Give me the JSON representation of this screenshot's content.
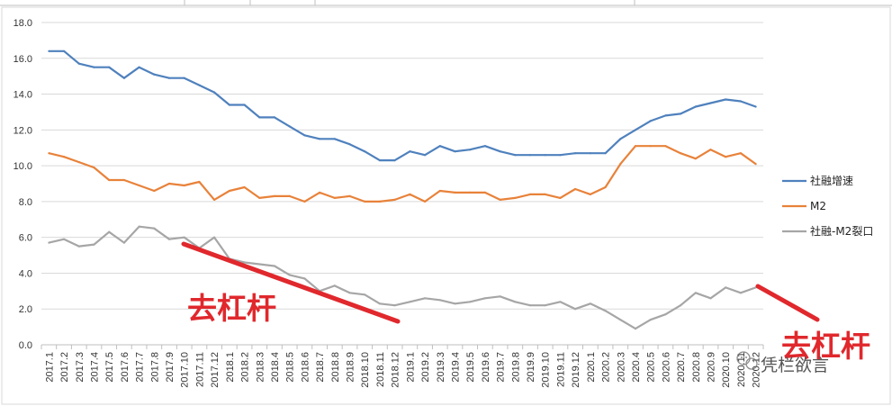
{
  "chart_data": {
    "type": "line",
    "title": "",
    "xlabel": "",
    "ylabel": "",
    "ylim": [
      0,
      18
    ],
    "yticks": [
      "0.0",
      "2.0",
      "4.0",
      "6.0",
      "8.0",
      "10.0",
      "12.0",
      "14.0",
      "16.0",
      "18.0"
    ],
    "grid": true,
    "legend_position": "right",
    "categories": [
      "2017.1",
      "2017.2",
      "2017.3",
      "2017.4",
      "2017.5",
      "2017.6",
      "2017.7",
      "2017.8",
      "2017.9",
      "2017.10",
      "2017.11",
      "2017.12",
      "2018.1",
      "2018.2",
      "2018.3",
      "2018.4",
      "2018.5",
      "2018.6",
      "2018.7",
      "2018.8",
      "2018.9",
      "2018.10",
      "2018.11",
      "2018.12",
      "2019.1",
      "2019.2",
      "2019.3",
      "2019.4",
      "2019.5",
      "2019.6",
      "2019.7",
      "2019.8",
      "2019.9",
      "2019.10",
      "2019.11",
      "2019.12",
      "2020.1",
      "2020.2",
      "2020.3",
      "2020.4",
      "2020.5",
      "2020.6",
      "2020.7",
      "2020.8",
      "2020.9",
      "2020.10",
      "2020.11",
      "2020.12"
    ],
    "series": [
      {
        "name": "社融增速",
        "color": "#4f81bd",
        "values": [
          16.4,
          16.4,
          15.7,
          15.5,
          15.5,
          14.9,
          15.5,
          15.1,
          14.9,
          14.9,
          14.5,
          14.1,
          13.4,
          13.4,
          12.7,
          12.7,
          12.2,
          11.7,
          11.5,
          11.5,
          11.2,
          10.8,
          10.3,
          10.3,
          10.8,
          10.6,
          11.1,
          10.8,
          10.9,
          11.1,
          10.8,
          10.6,
          10.6,
          10.6,
          10.6,
          10.7,
          10.7,
          10.7,
          11.5,
          12.0,
          12.5,
          12.8,
          12.9,
          13.3,
          13.5,
          13.7,
          13.6,
          13.3
        ]
      },
      {
        "name": "M2",
        "color": "#e8823a",
        "values": [
          10.7,
          10.5,
          10.2,
          9.9,
          9.2,
          9.2,
          8.9,
          8.6,
          9.0,
          8.9,
          9.1,
          8.1,
          8.6,
          8.8,
          8.2,
          8.3,
          8.3,
          8.0,
          8.5,
          8.2,
          8.3,
          8.0,
          8.0,
          8.1,
          8.4,
          8.0,
          8.6,
          8.5,
          8.5,
          8.5,
          8.1,
          8.2,
          8.4,
          8.4,
          8.2,
          8.7,
          8.4,
          8.8,
          10.1,
          11.1,
          11.1,
          11.1,
          10.7,
          10.4,
          10.9,
          10.5,
          10.7,
          10.1
        ]
      },
      {
        "name": "社融-M2裂口",
        "color": "#a6a6a6",
        "values": [
          5.7,
          5.9,
          5.5,
          5.6,
          6.3,
          5.7,
          6.6,
          6.5,
          5.9,
          6.0,
          5.4,
          6.0,
          4.8,
          4.6,
          4.5,
          4.4,
          3.9,
          3.7,
          3.0,
          3.3,
          2.9,
          2.8,
          2.3,
          2.2,
          2.4,
          2.6,
          2.5,
          2.3,
          2.4,
          2.6,
          2.7,
          2.4,
          2.2,
          2.2,
          2.4,
          2.0,
          2.3,
          1.9,
          1.4,
          0.9,
          1.4,
          1.7,
          2.2,
          2.9,
          2.6,
          3.2,
          2.9,
          3.2
        ]
      }
    ],
    "annotations": [
      {
        "text": "去杠杆",
        "color": "#e0282d"
      },
      {
        "text": "去杠杆",
        "color": "#e0282d"
      }
    ]
  },
  "watermark": {
    "text": "凭栏欲言",
    "icon": "wechat-icon"
  }
}
